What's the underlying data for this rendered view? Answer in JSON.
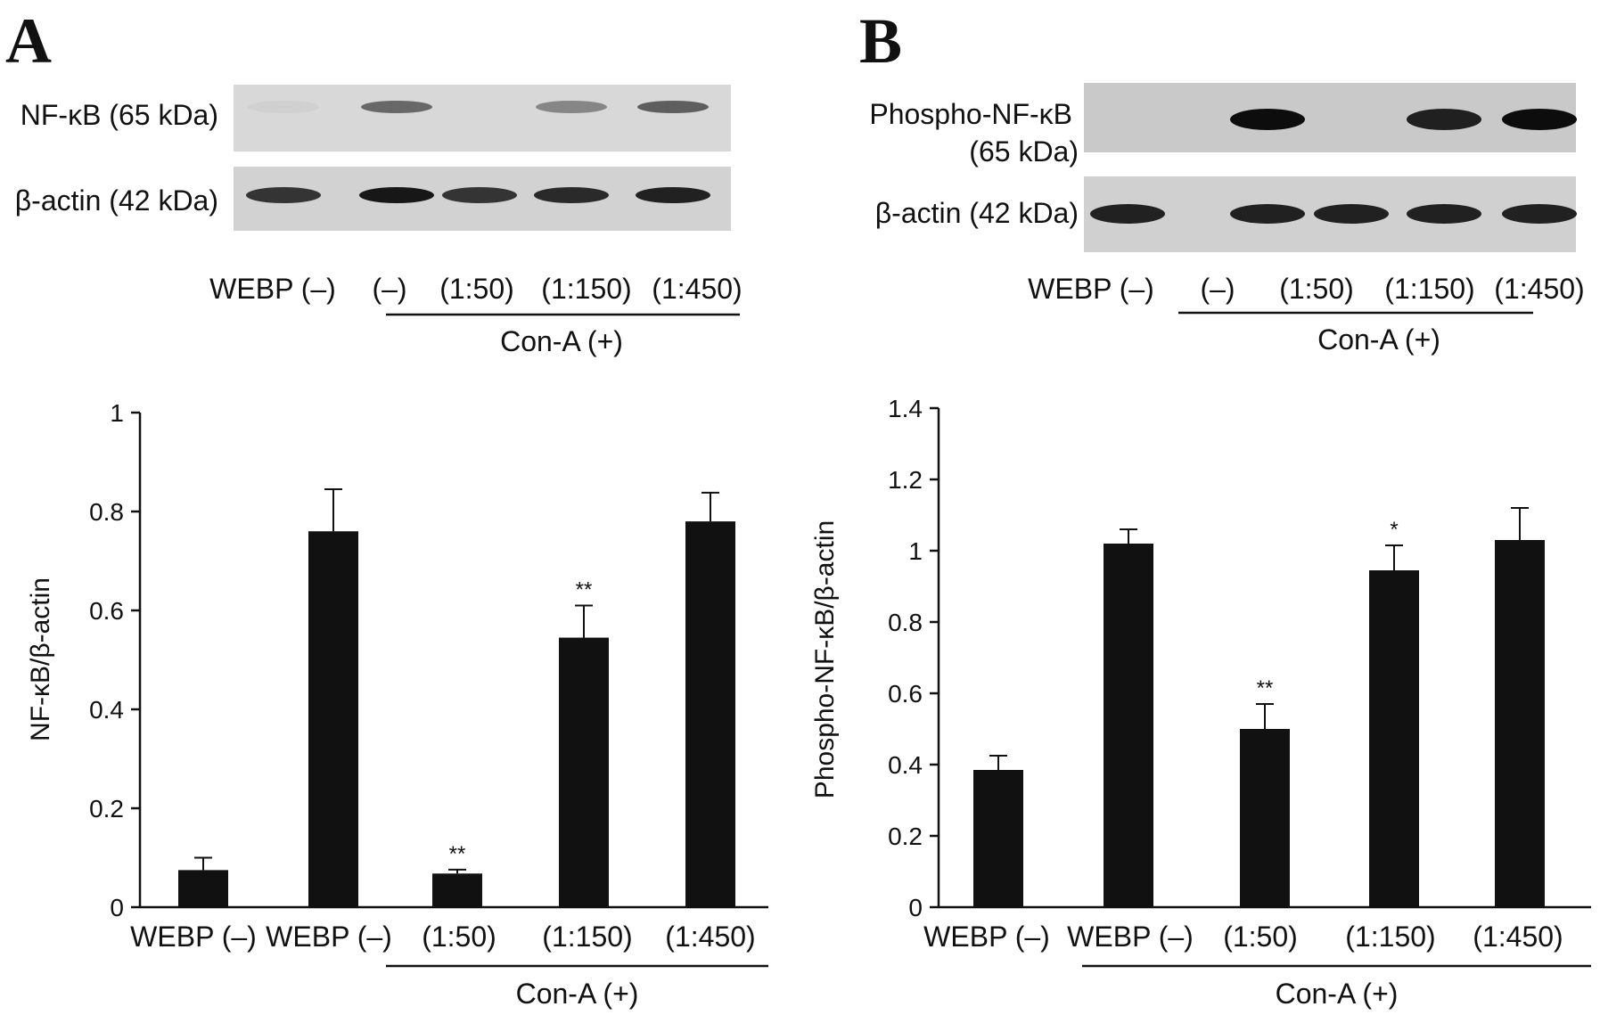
{
  "panels": [
    {
      "letter": "A",
      "blots": [
        {
          "label": "NF-κB (65 kDa)",
          "intensities": [
            0.04,
            0.55,
            0.0,
            0.4,
            0.6
          ]
        },
        {
          "label": "β-actin (42 kDa)",
          "intensities": [
            0.8,
            0.95,
            0.8,
            0.85,
            0.9
          ]
        }
      ],
      "lane_labels": [
        "WEBP (–)",
        "(–)",
        "(1:50)",
        "(1:150)",
        "(1:450)"
      ],
      "group_label": "Con-A (+)"
    },
    {
      "letter": "B",
      "blots": [
        {
          "label_lines": [
            "Phospho-NF-κB",
            "(65 kDa)"
          ],
          "intensities": [
            0.0,
            1.0,
            0.0,
            0.9,
            1.0
          ]
        },
        {
          "label": "β-actin (42 kDa)",
          "intensities": [
            0.9,
            0.9,
            0.9,
            0.9,
            0.9
          ]
        }
      ],
      "lane_labels": [
        "WEBP (–)",
        "(–)",
        "(1:50)",
        "(1:150)",
        "(1:450)"
      ],
      "group_label": "Con-A (+)"
    }
  ],
  "chart_data": [
    {
      "type": "bar",
      "categories": [
        "WEBP (–)",
        "WEBP (–)",
        "(1:50)",
        "(1:150)",
        "(1:450)"
      ],
      "values": [
        0.075,
        0.76,
        0.068,
        0.545,
        0.78
      ],
      "errors": [
        0.025,
        0.085,
        0.008,
        0.065,
        0.058
      ],
      "significance": [
        "",
        "",
        "**",
        "**",
        ""
      ],
      "title": "",
      "xlabel": "",
      "ylabel": "NF-κB/β-actin",
      "ylim": [
        0,
        1
      ],
      "yticks": [
        0,
        0.2,
        0.4,
        0.6,
        0.8,
        1
      ],
      "ytick_labels": [
        "0",
        "0.2",
        "0.4",
        "0.6",
        "0.8",
        "1"
      ],
      "group_label": "Con-A (+)",
      "bar_color": "#111111"
    },
    {
      "type": "bar",
      "categories": [
        "WEBP (–)",
        "WEBP (–)",
        "(1:50)",
        "(1:150)",
        "(1:450)"
      ],
      "values": [
        0.385,
        1.02,
        0.5,
        0.945,
        1.03
      ],
      "errors": [
        0.04,
        0.04,
        0.07,
        0.07,
        0.09
      ],
      "significance": [
        "",
        "",
        "**",
        "*",
        ""
      ],
      "title": "",
      "xlabel": "",
      "ylabel": "Phospho-NF-κB/β-actin",
      "ylim": [
        0,
        1.4
      ],
      "yticks": [
        0,
        0.2,
        0.4,
        0.6,
        0.8,
        1,
        1.2,
        1.4
      ],
      "ytick_labels": [
        "0",
        "0.2",
        "0.4",
        "0.6",
        "0.8",
        "1",
        "1.2",
        "1.4"
      ],
      "group_label": "Con-A (+)",
      "bar_color": "#111111"
    }
  ]
}
